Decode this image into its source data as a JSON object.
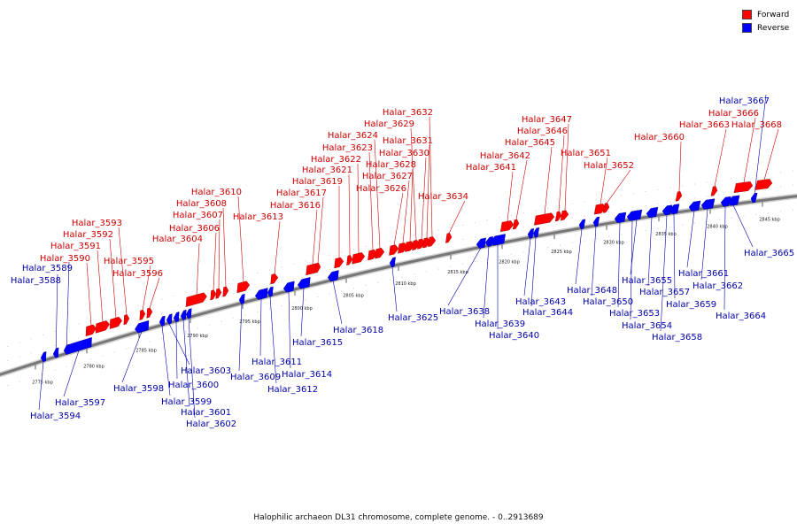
{
  "legend": {
    "forward_label": "Forward",
    "reverse_label": "Reverse",
    "forward_color": "#ff0000",
    "reverse_color": "#0000ff"
  },
  "colors": {
    "forward_label_text": "#cc0000",
    "reverse_label_text": "#0000aa",
    "backbone": "#777777"
  },
  "caption": "Halophilic archaeon DL31 chromosome, complete genome. - 0..2913689",
  "ticks": [
    "2775 kbp",
    "2780 kbp",
    "2785 kbp",
    "2790 kbp",
    "2795 kbp",
    "2800 kbp",
    "2805 kbp",
    "2810 kbp",
    "2815 kbp",
    "2820 kbp",
    "2825 kbp",
    "2830 kbp",
    "2835 kbp",
    "2840 kbp",
    "2845 kbp"
  ],
  "genes": [
    {
      "id": "Halar_3588",
      "strand": "reverse"
    },
    {
      "id": "Halar_3589",
      "strand": "reverse"
    },
    {
      "id": "Halar_3590",
      "strand": "forward"
    },
    {
      "id": "Halar_3591",
      "strand": "forward"
    },
    {
      "id": "Halar_3592",
      "strand": "forward"
    },
    {
      "id": "Halar_3593",
      "strand": "forward"
    },
    {
      "id": "Halar_3594",
      "strand": "reverse"
    },
    {
      "id": "Halar_3595",
      "strand": "forward"
    },
    {
      "id": "Halar_3596",
      "strand": "forward"
    },
    {
      "id": "Halar_3597",
      "strand": "reverse"
    },
    {
      "id": "Halar_3598",
      "strand": "reverse"
    },
    {
      "id": "Halar_3599",
      "strand": "reverse"
    },
    {
      "id": "Halar_3600",
      "strand": "reverse"
    },
    {
      "id": "Halar_3601",
      "strand": "reverse"
    },
    {
      "id": "Halar_3602",
      "strand": "reverse"
    },
    {
      "id": "Halar_3603",
      "strand": "reverse"
    },
    {
      "id": "Halar_3604",
      "strand": "forward"
    },
    {
      "id": "Halar_3606",
      "strand": "forward"
    },
    {
      "id": "Halar_3607",
      "strand": "forward"
    },
    {
      "id": "Halar_3608",
      "strand": "forward"
    },
    {
      "id": "Halar_3609",
      "strand": "reverse"
    },
    {
      "id": "Halar_3610",
      "strand": "forward"
    },
    {
      "id": "Halar_3611",
      "strand": "reverse"
    },
    {
      "id": "Halar_3612",
      "strand": "reverse"
    },
    {
      "id": "Halar_3613",
      "strand": "forward"
    },
    {
      "id": "Halar_3614",
      "strand": "reverse"
    },
    {
      "id": "Halar_3615",
      "strand": "reverse"
    },
    {
      "id": "Halar_3616",
      "strand": "forward"
    },
    {
      "id": "Halar_3617",
      "strand": "forward"
    },
    {
      "id": "Halar_3618",
      "strand": "reverse"
    },
    {
      "id": "Halar_3619",
      "strand": "forward"
    },
    {
      "id": "Halar_3621",
      "strand": "forward"
    },
    {
      "id": "Halar_3622",
      "strand": "forward"
    },
    {
      "id": "Halar_3623",
      "strand": "forward"
    },
    {
      "id": "Halar_3624",
      "strand": "forward"
    },
    {
      "id": "Halar_3625",
      "strand": "reverse"
    },
    {
      "id": "Halar_3626",
      "strand": "forward"
    },
    {
      "id": "Halar_3627",
      "strand": "forward"
    },
    {
      "id": "Halar_3628",
      "strand": "forward"
    },
    {
      "id": "Halar_3629",
      "strand": "forward"
    },
    {
      "id": "Halar_3630",
      "strand": "forward"
    },
    {
      "id": "Halar_3631",
      "strand": "forward"
    },
    {
      "id": "Halar_3632",
      "strand": "forward"
    },
    {
      "id": "Halar_3634",
      "strand": "forward"
    },
    {
      "id": "Halar_3638",
      "strand": "reverse"
    },
    {
      "id": "Halar_3639",
      "strand": "reverse"
    },
    {
      "id": "Halar_3640",
      "strand": "reverse"
    },
    {
      "id": "Halar_3641",
      "strand": "forward"
    },
    {
      "id": "Halar_3642",
      "strand": "forward"
    },
    {
      "id": "Halar_3643",
      "strand": "reverse"
    },
    {
      "id": "Halar_3644",
      "strand": "reverse"
    },
    {
      "id": "Halar_3645",
      "strand": "forward"
    },
    {
      "id": "Halar_3646",
      "strand": "forward"
    },
    {
      "id": "Halar_3647",
      "strand": "forward"
    },
    {
      "id": "Halar_3648",
      "strand": "reverse"
    },
    {
      "id": "Halar_3650",
      "strand": "reverse"
    },
    {
      "id": "Halar_3651",
      "strand": "forward"
    },
    {
      "id": "Halar_3652",
      "strand": "forward"
    },
    {
      "id": "Halar_3653",
      "strand": "reverse"
    },
    {
      "id": "Halar_3654",
      "strand": "reverse"
    },
    {
      "id": "Halar_3655",
      "strand": "reverse"
    },
    {
      "id": "Halar_3657",
      "strand": "reverse"
    },
    {
      "id": "Halar_3658",
      "strand": "reverse"
    },
    {
      "id": "Halar_3659",
      "strand": "reverse"
    },
    {
      "id": "Halar_3660",
      "strand": "forward"
    },
    {
      "id": "Halar_3661",
      "strand": "reverse"
    },
    {
      "id": "Halar_3662",
      "strand": "reverse"
    },
    {
      "id": "Halar_3663",
      "strand": "forward"
    },
    {
      "id": "Halar_3664",
      "strand": "reverse"
    },
    {
      "id": "Halar_3665",
      "strand": "reverse"
    },
    {
      "id": "Halar_3666",
      "strand": "forward"
    },
    {
      "id": "Halar_3667",
      "strand": "reverse"
    },
    {
      "id": "Halar_3668",
      "strand": "forward"
    }
  ]
}
